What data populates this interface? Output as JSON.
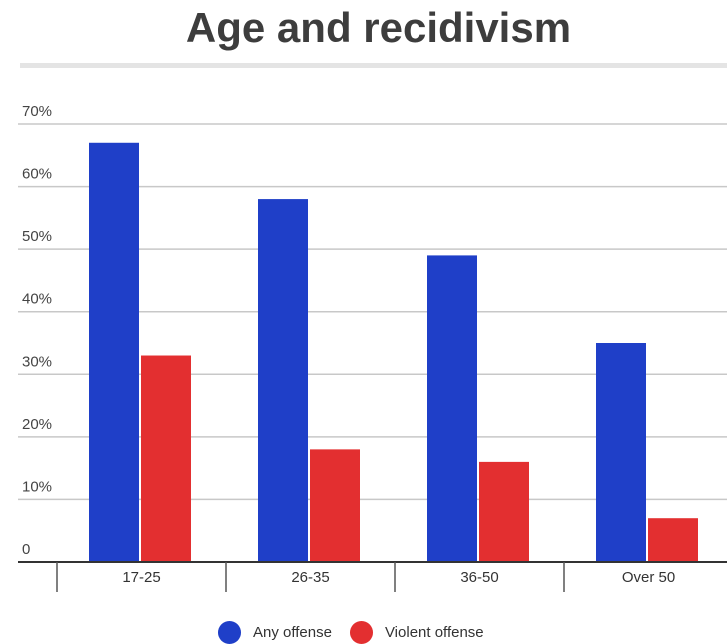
{
  "chart_data": {
    "type": "bar",
    "title": "Age and recidivism",
    "categories": [
      "17-25",
      "26-35",
      "36-50",
      "Over 50"
    ],
    "series": [
      {
        "name": "Any offense",
        "values": [
          67,
          58,
          49,
          35
        ],
        "color": "#1f3fc8"
      },
      {
        "name": "Violent offense",
        "values": [
          33,
          18,
          16,
          7
        ],
        "color": "#e32f30"
      }
    ],
    "y_ticks": [
      "0",
      "10%",
      "20%",
      "30%",
      "40%",
      "50%",
      "60%",
      "70%"
    ],
    "ylim": [
      0,
      70
    ],
    "grid": true,
    "legend_position": "bottom"
  }
}
